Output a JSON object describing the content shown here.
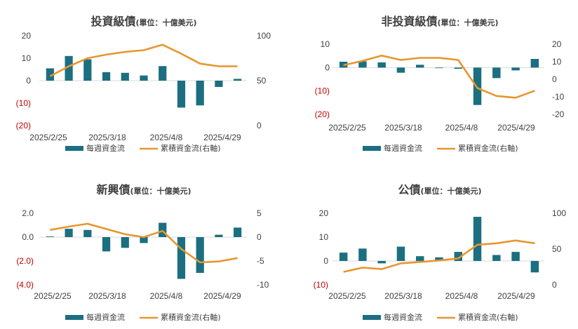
{
  "colors": {
    "bar": "#1b6f80",
    "line": "#e6962f",
    "negative_tick": "#c00000",
    "text": "#404040"
  },
  "legend": {
    "bar": "每週資金流",
    "line": "累積資金流(右軸)"
  },
  "chart_data": [
    {
      "type": "bar",
      "title": "投資級債",
      "subtitle": "(單位：十億美元)",
      "x_ticks": [
        "2025/2/25",
        "2025/3/18",
        "2025/4/8",
        "2025/4/29"
      ],
      "y_left": {
        "range": [
          -20,
          20
        ],
        "ticks": [
          "20",
          "10",
          "0",
          "(10)",
          "(20)"
        ]
      },
      "y_right": {
        "range": [
          0,
          100
        ],
        "ticks": [
          "100",
          "50",
          "0"
        ]
      },
      "series": [
        {
          "name": "每週資金流",
          "kind": "bar",
          "axis": "left",
          "values": [
            5.5,
            11,
            9.5,
            3.8,
            3.5,
            2.3,
            6.5,
            -12,
            -11,
            -2.8,
            0.8
          ]
        },
        {
          "name": "累積資金流(右軸)",
          "kind": "line",
          "axis": "right",
          "values": [
            55,
            66,
            75,
            79,
            82,
            84,
            90,
            80,
            69,
            66,
            66
          ]
        }
      ]
    },
    {
      "type": "bar",
      "title": "非投資級債",
      "subtitle": "(單位：十億美元)",
      "x_ticks": [
        "2025/2/25",
        "2025/3/18",
        "2025/4/8",
        "2025/4/29"
      ],
      "y_left": {
        "range": [
          -20,
          10
        ],
        "ticks": [
          "10",
          "0",
          "(10)",
          "(20)"
        ]
      },
      "y_right": {
        "range": [
          -20,
          20
        ],
        "ticks": [
          "20",
          "10",
          "0",
          "-10",
          "-20"
        ]
      },
      "series": [
        {
          "name": "每週資金流",
          "kind": "bar",
          "axis": "left",
          "values": [
            2.5,
            2.7,
            2.2,
            -2.2,
            1.2,
            -0.2,
            -0.5,
            -16,
            -4.5,
            -1.2,
            3.7
          ]
        },
        {
          "name": "累積資金流(右軸)",
          "kind": "line",
          "axis": "right",
          "values": [
            8,
            10.5,
            13.5,
            11,
            12.2,
            12.2,
            11,
            -5,
            -9.5,
            -10.5,
            -6.5
          ]
        }
      ]
    },
    {
      "type": "bar",
      "title": "新興債",
      "subtitle": "(單位：十億美元)",
      "x_ticks": [
        "2025/2/25",
        "2025/3/18",
        "2025/4/8",
        "2025/4/29"
      ],
      "y_left": {
        "range": [
          -4,
          2
        ],
        "ticks": [
          "2.0",
          "0.0",
          "(2.0)",
          "(4.0)"
        ]
      },
      "y_right": {
        "range": [
          -10,
          5
        ],
        "ticks": [
          "5",
          "0",
          "-5",
          "-10"
        ]
      },
      "series": [
        {
          "name": "每週資金流",
          "kind": "bar",
          "axis": "left",
          "values": [
            0.05,
            0.7,
            0.6,
            -1.2,
            -0.9,
            -0.5,
            1.2,
            -3.5,
            -3.0,
            0.2,
            0.8
          ]
        },
        {
          "name": "累積資金流(右軸)",
          "kind": "line",
          "axis": "right",
          "values": [
            1.5,
            2.2,
            2.8,
            1.7,
            0.6,
            0.0,
            1.3,
            -2.5,
            -5.3,
            -5.1,
            -4.4
          ]
        }
      ]
    },
    {
      "type": "bar",
      "title": "公債",
      "subtitle": "(單位：十億美元)",
      "x_ticks": [
        "2025/2/25",
        "2025/3/18",
        "2025/4/8",
        "2025/4/29"
      ],
      "y_left": {
        "range": [
          -10,
          20
        ],
        "ticks": [
          "20",
          "10",
          "0",
          "(10)"
        ]
      },
      "y_right": {
        "range": [
          0,
          100
        ],
        "ticks": [
          "100",
          "50",
          "0"
        ]
      },
      "series": [
        {
          "name": "每週資金流",
          "kind": "bar",
          "axis": "left",
          "values": [
            3.5,
            5.2,
            -1.0,
            6.0,
            2.0,
            1.5,
            3.8,
            18.5,
            2.5,
            3.8,
            -4.8
          ]
        },
        {
          "name": "累積資金流(右軸)",
          "kind": "line",
          "axis": "right",
          "values": [
            18,
            24,
            22,
            30,
            32,
            34,
            37,
            56,
            58,
            62,
            58
          ]
        }
      ]
    }
  ]
}
